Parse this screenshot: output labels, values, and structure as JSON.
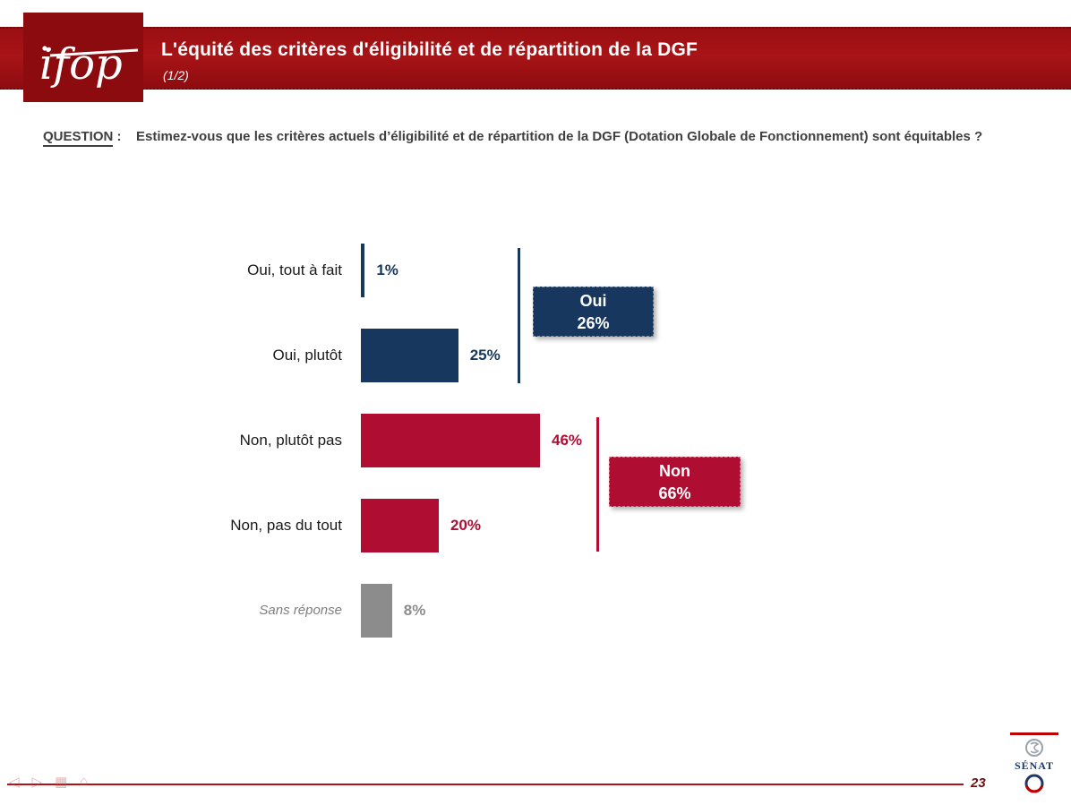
{
  "header": {
    "logo_text": "ifop",
    "title": "L'équité des critères d'éligibilité et de répartition de la DGF",
    "subtitle": "(1/2)",
    "band_color": "#9c0f12"
  },
  "question": {
    "label": "QUESTION",
    "separator": " :",
    "text": "Estimez-vous que les critères actuels d’éligibilité et de répartition de la DGF (Dotation Globale de Fonctionnement) sont équitables ?"
  },
  "chart_data": {
    "type": "bar",
    "orientation": "horizontal",
    "title": "",
    "xlabel": "",
    "ylabel": "",
    "xlim": [
      0,
      50
    ],
    "grid": false,
    "categories": [
      "Oui, tout à fait",
      "Oui, plutôt",
      "Non, plutôt pas",
      "Non, pas du tout",
      "Sans réponse"
    ],
    "values": [
      1,
      25,
      46,
      20,
      8
    ],
    "value_labels": [
      "1%",
      "25%",
      "46%",
      "20%",
      "8%"
    ],
    "colors": [
      "#17375e",
      "#17375e",
      "#b00d33",
      "#b00d33",
      "#8c8c8c"
    ],
    "muted_rows": [
      4
    ],
    "summary_groups": [
      {
        "label": "Oui",
        "value": 26,
        "value_label": "26%",
        "color": "#17375e"
      },
      {
        "label": "Non",
        "value": 66,
        "value_label": "66%",
        "color": "#b00d33"
      }
    ]
  },
  "footer": {
    "page_number": "23",
    "senat_text": "SÉNAT",
    "nav_icons": [
      {
        "name": "nav-previous-icon",
        "glyph": "◁"
      },
      {
        "name": "nav-next-icon",
        "glyph": "▷"
      },
      {
        "name": "nav-menu-icon",
        "glyph": "▦"
      },
      {
        "name": "nav-home-icon",
        "glyph": "⌂"
      }
    ]
  }
}
